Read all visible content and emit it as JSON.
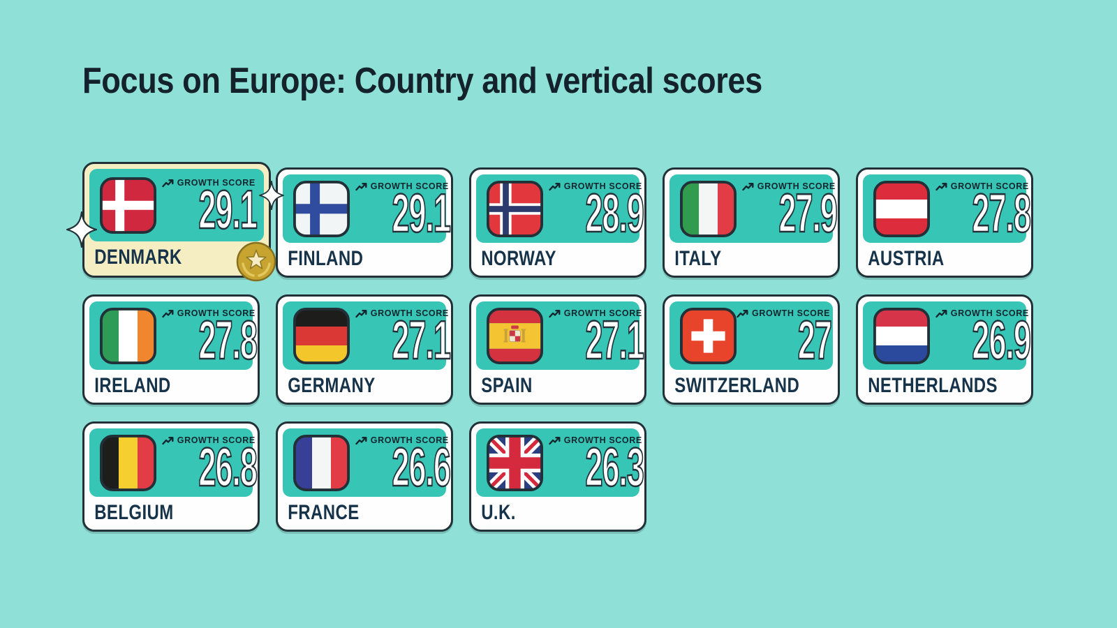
{
  "page": {
    "title": "Focus on Europe: Country and vertical scores",
    "background_color": "#8FE0D6"
  },
  "labels": {
    "growth_score": "GROWTH SCORE"
  },
  "colors": {
    "card_panel_teal": "#37C5B6",
    "card_white": "#FDFEFD",
    "card_border_dark": "#223038",
    "country_name_navy": "#16334A",
    "score_white": "#FFFFFF",
    "highlight_cream": "#F6EEC3",
    "badge_gold": "#C7A42F",
    "title_dark": "#14222B"
  },
  "icons": {
    "trend": "trend-up-icon",
    "medal": "gold-star-medal-icon",
    "sparkle": "sparkle-icon"
  },
  "cards": [
    {
      "country": "DENMARK",
      "score": "29.1",
      "flag": "dk",
      "highlighted": true
    },
    {
      "country": "FINLAND",
      "score": "29.1",
      "flag": "fi",
      "highlighted": false
    },
    {
      "country": "NORWAY",
      "score": "28.9",
      "flag": "no",
      "highlighted": false
    },
    {
      "country": "ITALY",
      "score": "27.9",
      "flag": "it",
      "highlighted": false
    },
    {
      "country": "AUSTRIA",
      "score": "27.8",
      "flag": "at",
      "highlighted": false
    },
    {
      "country": "IRELAND",
      "score": "27.8",
      "flag": "ie",
      "highlighted": false
    },
    {
      "country": "GERMANY",
      "score": "27.1",
      "flag": "de",
      "highlighted": false
    },
    {
      "country": "SPAIN",
      "score": "27.1",
      "flag": "es",
      "highlighted": false
    },
    {
      "country": "SWITZERLAND",
      "score": "27",
      "flag": "ch",
      "highlighted": false
    },
    {
      "country": "NETHERLANDS",
      "score": "26.9",
      "flag": "nl",
      "highlighted": false
    },
    {
      "country": "BELGIUM",
      "score": "26.8",
      "flag": "be",
      "highlighted": false
    },
    {
      "country": "FRANCE",
      "score": "26.6",
      "flag": "fr",
      "highlighted": false
    },
    {
      "country": "U.K.",
      "score": "26.3",
      "flag": "gb",
      "highlighted": false
    }
  ],
  "chart_data": {
    "type": "table",
    "title": "Focus on Europe: Country and vertical scores",
    "metric": "GROWTH SCORE",
    "categories": [
      "DENMARK",
      "FINLAND",
      "NORWAY",
      "ITALY",
      "AUSTRIA",
      "IRELAND",
      "GERMANY",
      "SPAIN",
      "SWITZERLAND",
      "NETHERLANDS",
      "BELGIUM",
      "FRANCE",
      "U.K."
    ],
    "values": [
      29.1,
      29.1,
      28.9,
      27.9,
      27.8,
      27.8,
      27.1,
      27.1,
      27,
      26.9,
      26.8,
      26.6,
      26.3
    ],
    "layout": "3 rows of cards (5 / 5 / 3), ranked highest to lowest, top card highlighted with gold medal"
  }
}
